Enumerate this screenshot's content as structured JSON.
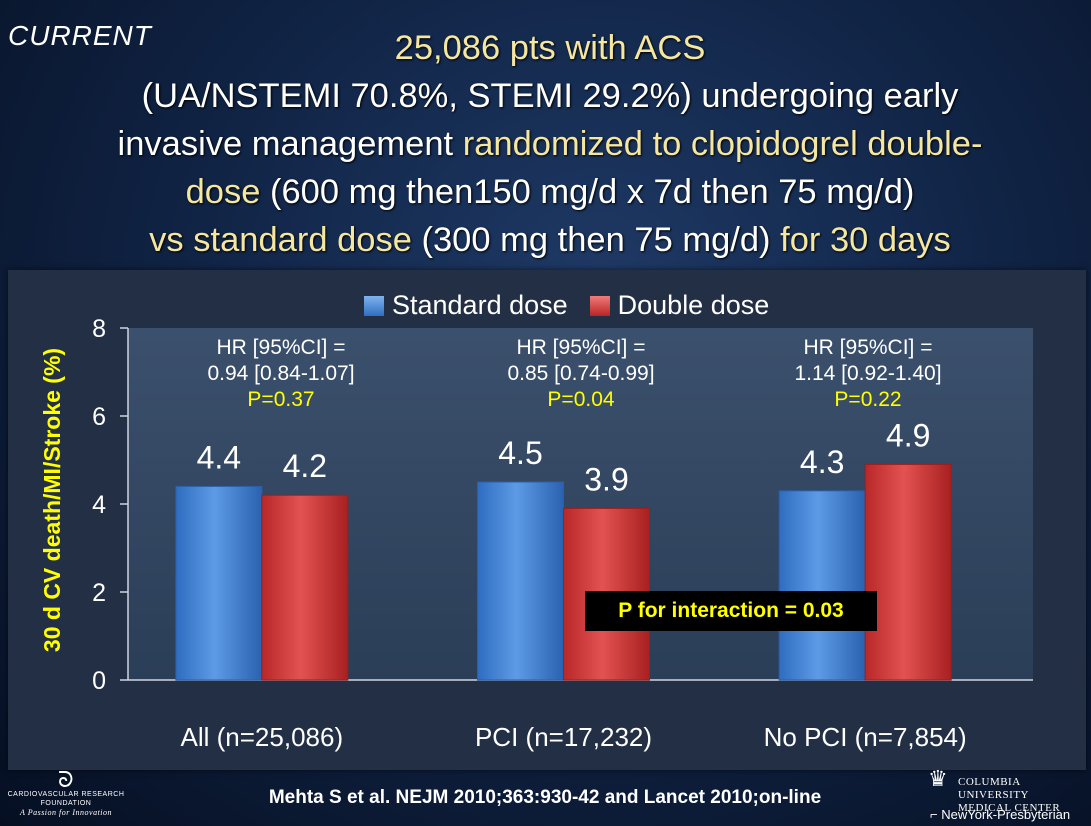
{
  "logo": "CURRENT",
  "title": {
    "line1": "25,086 pts with ACS",
    "line2": "(UA/NSTEMI 70.8%, STEMI 29.2%) undergoing early",
    "line3_w": "invasive management ",
    "line3_y": "randomized to clopidogrel double-",
    "line4_y": "dose",
    "line4_w": " (600 mg then150 mg/d x 7d then 75 mg/d)",
    "line5_y1": "vs standard dose",
    "line5_w": " (300 mg then 75 mg/d) ",
    "line5_y2": "for 30 days"
  },
  "chart_data": {
    "type": "bar",
    "categories": [
      "All (n=25,086)",
      "PCI (n=17,232)",
      "No PCI (n=7,854)"
    ],
    "series": [
      {
        "name": "Standard dose",
        "values": [
          4.4,
          4.5,
          4.3
        ],
        "color": "#4f8fd8"
      },
      {
        "name": "Double dose",
        "values": [
          4.2,
          3.9,
          4.9
        ],
        "color": "#d94545"
      }
    ],
    "value_labels": [
      [
        "4.4",
        "4.5",
        "4.3"
      ],
      [
        "4.2",
        "3.9",
        "4.9"
      ]
    ],
    "ylabel": "30 d CV death/MI/Stroke (%)",
    "ylim": [
      0,
      8
    ],
    "yticks": [
      "0",
      "2",
      "4",
      "6",
      "8"
    ],
    "legend_position": "top",
    "annotations": [
      {
        "hr": "HR [95%CI] =",
        "ci": "0.94 [0.84-1.07]",
        "p": "P=0.37"
      },
      {
        "hr": "HR [95%CI] =",
        "ci": "0.85 [0.74-0.99]",
        "p": "P=0.04"
      },
      {
        "hr": "HR [95%CI] =",
        "ci": "1.14 [0.92-1.40]",
        "p": "P=0.22"
      }
    ],
    "interaction": "P for interaction = 0.03"
  },
  "citation": "Mehta S et al. NEJM 2010;363:930-42 and Lancet 2010;on-line",
  "footer": {
    "crf_line1": "CARDIOVASCULAR RESEARCH",
    "crf_line2": "FOUNDATION",
    "crf_tagline": "A Passion for Innovation",
    "cu_line1": "COLUMBIA UNIVERSITY",
    "cu_line2": "MEDICAL CENTER",
    "nyp": "NewYork-Presbyterian"
  }
}
